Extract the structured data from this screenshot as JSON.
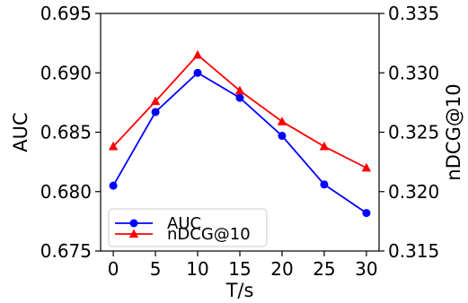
{
  "chart_data": {
    "type": "line",
    "x": [
      0,
      5,
      10,
      15,
      20,
      25,
      30
    ],
    "x_tick_labels": [
      "0",
      "5",
      "10",
      "15",
      "20",
      "25",
      "30"
    ],
    "xlabel": "T/s",
    "xlim": [
      -1.5,
      31.5
    ],
    "y_left": {
      "label": "AUC",
      "lim": [
        0.675,
        0.695
      ],
      "ticks": [
        0.675,
        0.68,
        0.685,
        0.69,
        0.695
      ],
      "tick_labels": [
        "0.675",
        "0.680",
        "0.685",
        "0.690",
        "0.695"
      ]
    },
    "y_right": {
      "label": "nDCG@10",
      "lim": [
        0.315,
        0.335
      ],
      "ticks": [
        0.315,
        0.32,
        0.325,
        0.33,
        0.335
      ],
      "tick_labels": [
        "0.315",
        "0.320",
        "0.325",
        "0.330",
        "0.335"
      ]
    },
    "grid": false,
    "legend_position": "lower-left",
    "series": [
      {
        "name": "AUC",
        "axis": "left",
        "marker": "circle",
        "color": "#0000ff",
        "values": [
          0.6805,
          0.6867,
          0.69,
          0.6879,
          0.6847,
          0.6806,
          0.6782
        ]
      },
      {
        "name": "nDCG@10",
        "axis": "right",
        "marker": "triangle",
        "color": "#ff0000",
        "values": [
          0.3238,
          0.3276,
          0.3315,
          0.3285,
          0.3259,
          0.3238,
          0.322
        ]
      }
    ]
  }
}
